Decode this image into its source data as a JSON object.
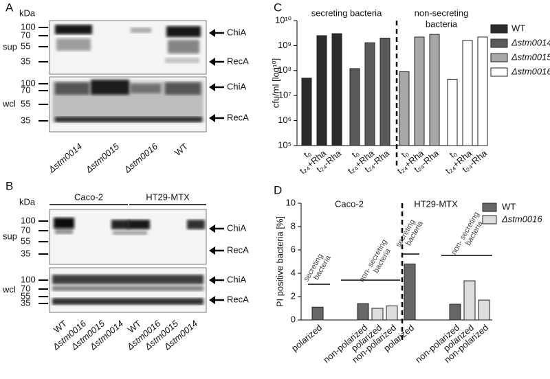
{
  "figure": {
    "panel_a": {
      "label": "A",
      "unit": "kDa",
      "rows": [
        {
          "name": "sup",
          "markers": [
            100,
            70,
            55,
            35
          ],
          "bands": [
            "ChiA",
            "RecA"
          ]
        },
        {
          "name": "wcl",
          "markers": [
            100,
            70,
            55,
            35
          ],
          "bands": [
            "ChiA",
            "RecA"
          ]
        }
      ],
      "lanes": [
        "Δstm0014",
        "Δstm0015",
        "Δstm0016",
        "WT"
      ]
    },
    "panel_b": {
      "label": "B",
      "unit": "kDa",
      "groups": [
        "Caco-2",
        "HT29-MTX"
      ],
      "rows": [
        {
          "name": "sup",
          "markers": [
            100,
            70,
            55,
            35
          ],
          "bands": [
            "ChiA",
            "RecA"
          ]
        },
        {
          "name": "wcl",
          "markers": [
            100,
            70,
            55,
            35
          ],
          "bands": [
            "ChiA",
            "RecA"
          ]
        }
      ],
      "lanes": [
        "WT",
        "Δstm0016",
        "Δstm0015",
        "Δstm0014",
        "WT",
        "Δstm0016",
        "Δstm0015",
        "Δstm0014"
      ]
    }
  },
  "chart_data": [
    {
      "type": "bar",
      "panel_label": "C",
      "y_label": "cfu/ml [log¹⁰]",
      "log_scale": true,
      "ylim": [
        100000,
        10000000000
      ],
      "yticks": [
        {
          "value": 100000,
          "label": "10⁵"
        },
        {
          "value": 1000000,
          "label": "10⁶"
        },
        {
          "value": 10000000,
          "label": "10⁷"
        },
        {
          "value": 100000000,
          "label": "10⁸"
        },
        {
          "value": 1000000000,
          "label": "10⁹"
        },
        {
          "value": 10000000000,
          "label": "10¹⁰"
        }
      ],
      "annotations": [
        [
          "secreting bacteria"
        ],
        [
          "non-secreting",
          "bacteria"
        ]
      ],
      "categories": [
        "t₀",
        "t₂₄+Rha",
        "t₂₄-Rha",
        "t₀",
        "t₂₄+Rha",
        "t₂₄-Rha",
        "t₀",
        "t₂₄+Rha",
        "t₂₄-Rha",
        "t₀",
        "t₂₄+Rha",
        "t₂₄-Rha"
      ],
      "series": [
        {
          "name": "WT",
          "color": "#2b2b2b",
          "values": [
            50000000,
            2500000000,
            3000000000,
            null,
            null,
            null,
            null,
            null,
            null,
            null,
            null,
            null
          ]
        },
        {
          "name": "Δstm0014",
          "color": "#5a5a5a",
          "values": [
            null,
            null,
            null,
            120000000,
            1300000000,
            2000000000,
            null,
            null,
            null,
            null,
            null,
            null
          ]
        },
        {
          "name": "Δstm0015",
          "color": "#a8a8a8",
          "values": [
            null,
            null,
            null,
            null,
            null,
            null,
            90000000,
            2200000000,
            2800000000,
            null,
            null,
            null
          ]
        },
        {
          "name": "Δstm0016",
          "color": "#ffffff",
          "values": [
            null,
            null,
            null,
            null,
            null,
            null,
            null,
            null,
            null,
            45000000,
            1600000000,
            2200000000
          ]
        }
      ]
    },
    {
      "type": "bar",
      "panel_label": "D",
      "y_label": "PI positive bacteria [%]",
      "ylim": [
        0,
        10
      ],
      "yticks": [
        0,
        2,
        4,
        6,
        8,
        10
      ],
      "groups": [
        "Caco-2",
        "HT29-MTX"
      ],
      "group_notes": [
        [
          "secreting",
          "bacteria"
        ],
        [
          "non- secreting",
          "bacteria"
        ],
        [
          "secreting",
          "bacteria"
        ],
        [
          "non- secreting",
          "bacteria"
        ]
      ],
      "categories": [
        "polarized",
        "non-polarized",
        "polarized",
        "non-polarized",
        "polarized",
        "non-polarized",
        "polarized",
        "non-polarized"
      ],
      "series": [
        {
          "name": "WT",
          "color": "#666666",
          "values": [
            1.1,
            1.4,
            null,
            null,
            4.8,
            1.35,
            null,
            null
          ]
        },
        {
          "name": "Δstm0016",
          "color": "#dddddd",
          "values": [
            null,
            null,
            1.0,
            1.2,
            null,
            null,
            3.35,
            1.7
          ]
        }
      ]
    }
  ]
}
